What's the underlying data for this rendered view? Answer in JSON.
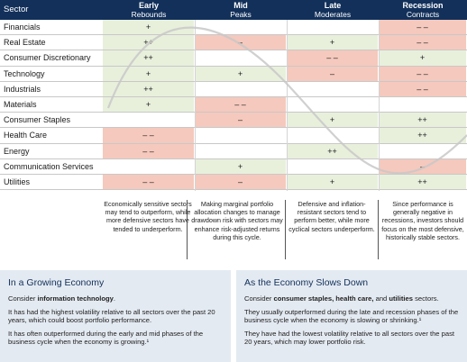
{
  "header": {
    "sector_label": "Sector",
    "phases": [
      {
        "name": "Early",
        "sub": "Rebounds"
      },
      {
        "name": "Mid",
        "sub": "Peaks"
      },
      {
        "name": "Late",
        "sub": "Moderates"
      },
      {
        "name": "Recession",
        "sub": "Contracts"
      }
    ]
  },
  "sectors": [
    {
      "name": "Financials",
      "cells": [
        {
          "v": "+",
          "t": "pos"
        },
        {
          "v": "",
          "t": "none"
        },
        {
          "v": "",
          "t": "none"
        },
        {
          "v": "– –",
          "t": "neg"
        }
      ]
    },
    {
      "name": "Real Estate",
      "cells": [
        {
          "v": "++",
          "t": "pos"
        },
        {
          "v": "–",
          "t": "neg"
        },
        {
          "v": "+",
          "t": "pos"
        },
        {
          "v": "– –",
          "t": "neg"
        }
      ]
    },
    {
      "name": "Consumer Discretionary",
      "cells": [
        {
          "v": "++",
          "t": "pos"
        },
        {
          "v": "",
          "t": "none"
        },
        {
          "v": "– –",
          "t": "neg"
        },
        {
          "v": "+",
          "t": "pos"
        }
      ]
    },
    {
      "name": "Technology",
      "cells": [
        {
          "v": "+",
          "t": "pos"
        },
        {
          "v": "+",
          "t": "pos"
        },
        {
          "v": "–",
          "t": "neg"
        },
        {
          "v": "– –",
          "t": "neg"
        }
      ]
    },
    {
      "name": "Industrials",
      "cells": [
        {
          "v": "++",
          "t": "pos"
        },
        {
          "v": "",
          "t": "none"
        },
        {
          "v": "",
          "t": "none"
        },
        {
          "v": "– –",
          "t": "neg"
        }
      ]
    },
    {
      "name": "Materials",
      "cells": [
        {
          "v": "+",
          "t": "pos"
        },
        {
          "v": "– –",
          "t": "neg"
        },
        {
          "v": "",
          "t": "none"
        },
        {
          "v": "",
          "t": "none"
        }
      ]
    },
    {
      "name": "Consumer Staples",
      "cells": [
        {
          "v": "",
          "t": "none"
        },
        {
          "v": "–",
          "t": "neg"
        },
        {
          "v": "+",
          "t": "pos"
        },
        {
          "v": "++",
          "t": "pos"
        }
      ]
    },
    {
      "name": "Health Care",
      "cells": [
        {
          "v": "– –",
          "t": "neg"
        },
        {
          "v": "",
          "t": "none"
        },
        {
          "v": "",
          "t": "none"
        },
        {
          "v": "++",
          "t": "pos"
        }
      ]
    },
    {
      "name": "Energy",
      "cells": [
        {
          "v": "– –",
          "t": "neg"
        },
        {
          "v": "",
          "t": "none"
        },
        {
          "v": "++",
          "t": "pos"
        },
        {
          "v": "",
          "t": "none"
        }
      ]
    },
    {
      "name": "Communication Services",
      "cells": [
        {
          "v": "",
          "t": "none"
        },
        {
          "v": "+",
          "t": "pos"
        },
        {
          "v": "",
          "t": "none"
        },
        {
          "v": "–",
          "t": "neg"
        }
      ]
    },
    {
      "name": "Utilities",
      "cells": [
        {
          "v": "– –",
          "t": "neg"
        },
        {
          "v": "–",
          "t": "neg"
        },
        {
          "v": "+",
          "t": "pos"
        },
        {
          "v": "++",
          "t": "pos"
        }
      ]
    }
  ],
  "notes": [
    "Economically sensitive sectors may tend to outperform, while more defensive sectors have tended to underperform.",
    "Making marginal portfolio allocation changes to manage drawdown risk with sectors may enhance risk-adjusted returns during this cycle.",
    "Defensive and inflation-resistant sectors tend to perform better, while more cyclical sectors underperform.",
    "Since performance is generally negative in recessions, investors should focus on the most defensive, historically stable sectors."
  ],
  "growing": {
    "title": "In a Growing Economy",
    "consider_prefix": "Consider ",
    "consider_bold": "information technology",
    "consider_suffix": ".",
    "p1": "It has had the highest volatility relative to all sectors over the past 20 years, which could boost portfolio performance.",
    "p2": "It has often outperformed during the early and mid phases of the business cycle when the economy is growing.¹"
  },
  "slowing": {
    "title": "As the Economy Slows Down",
    "consider_prefix": "Consider ",
    "consider_b1": "consumer staples, health care,",
    "consider_mid": " and ",
    "consider_b2": "utilities",
    "consider_suffix": " sectors.",
    "p1": "They usually outperformed during the late and recession phases of the business cycle when the economy is slowing or shrinking.¹",
    "p2": "They have had the lowest volatility relative to all sectors over the past 20 years, which may lower portfolio risk."
  },
  "colors": {
    "header": "#12305a",
    "positive": "#e8f0dc",
    "negative": "#f5c9bd",
    "box": "#e4eaf2"
  }
}
